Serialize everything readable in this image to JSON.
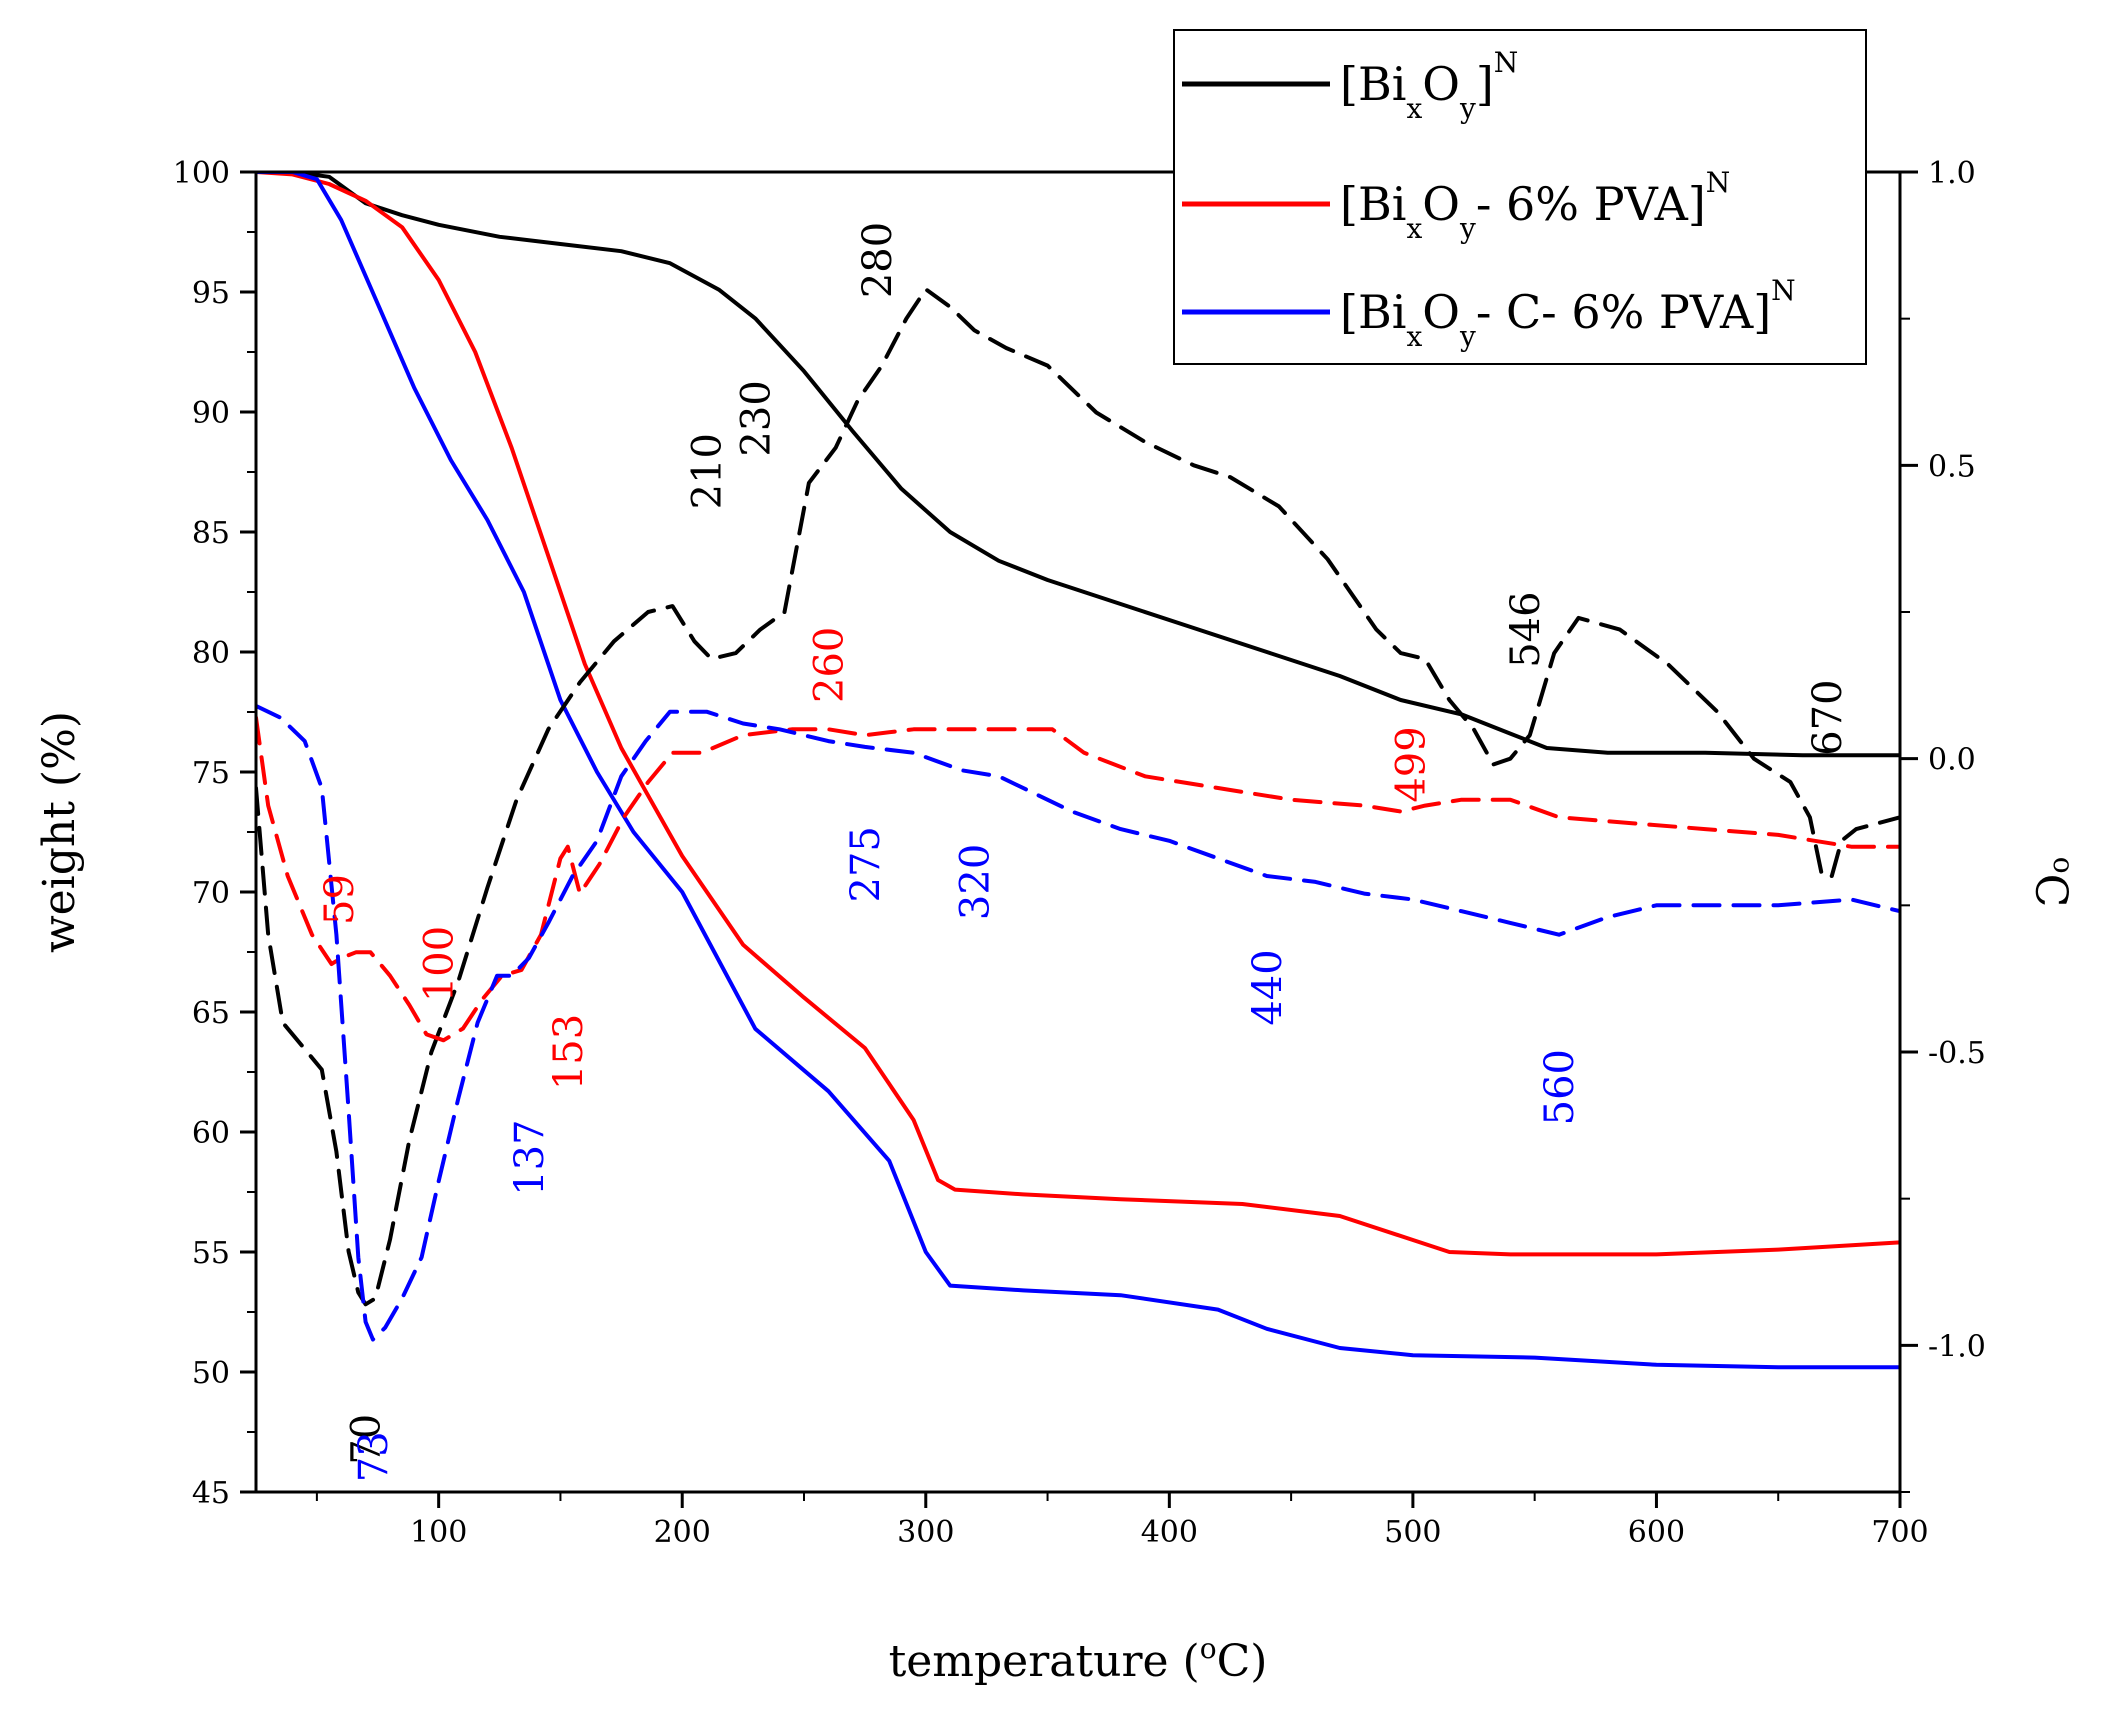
{
  "chart_data": {
    "type": "line",
    "title": "",
    "xlabel": "temperature (°C)",
    "xlabel_parts": {
      "pre": "temperature (",
      "sup": "o",
      "post": "C)"
    },
    "ylabel": "weight (%)",
    "y2label": "°C",
    "y2label_parts": {
      "sup": "o",
      "post": "C"
    },
    "xlim": [
      25,
      700
    ],
    "ylim": [
      45,
      100
    ],
    "y2lim": [
      -1.25,
      1.0
    ],
    "xticks": [
      100,
      200,
      300,
      400,
      500,
      600,
      700
    ],
    "xminor": [
      50,
      150,
      250,
      350,
      450,
      550,
      650
    ],
    "yticks": [
      45,
      50,
      55,
      60,
      65,
      70,
      75,
      80,
      85,
      90,
      95,
      100
    ],
    "yticks_labels": [
      "45",
      "50",
      "55",
      "60",
      "65",
      "70",
      "75",
      "80",
      "85",
      "90",
      "95",
      "100"
    ],
    "y2ticks": [
      -1.0,
      -0.5,
      0.0,
      0.5,
      1.0
    ],
    "y2ticks_labels": [
      "-1.0",
      "-0.5",
      "0.0",
      "0.5",
      "1.0"
    ],
    "y2minor": [
      -1.25,
      -0.75,
      -0.25,
      0.25,
      0.75
    ],
    "legend": {
      "position": "top-right",
      "entries": [
        {
          "series": "s1",
          "parts": [
            [
              "",
              "[Bi"
            ],
            [
              "sub",
              "x"
            ],
            [
              "",
              "O"
            ],
            [
              "sub",
              "y"
            ],
            [
              "",
              "]"
            ],
            [
              "sup",
              "N"
            ]
          ]
        },
        {
          "series": "s2",
          "parts": [
            [
              "",
              "[Bi"
            ],
            [
              "sub",
              "x"
            ],
            [
              "",
              "O"
            ],
            [
              "sub",
              "y"
            ],
            [
              "",
              "- 6% PVA]"
            ],
            [
              "sup",
              "N"
            ]
          ]
        },
        {
          "series": "s3",
          "parts": [
            [
              "",
              "[Bi"
            ],
            [
              "sub",
              "x"
            ],
            [
              "",
              "O"
            ],
            [
              "sub",
              "y"
            ],
            [
              "",
              "- C- 6% PVA]"
            ],
            [
              "sup",
              "N"
            ]
          ]
        }
      ]
    },
    "series": [
      {
        "id": "s1",
        "name": "[BixOy]N",
        "color": "#000000",
        "axis": "weight",
        "style": "solid",
        "x": [
          25,
          40,
          55,
          70,
          85,
          100,
          125,
          150,
          175,
          195,
          215,
          230,
          250,
          270,
          290,
          310,
          330,
          350,
          380,
          410,
          440,
          470,
          495,
          520,
          540,
          555,
          580,
          620,
          660,
          700
        ],
        "y": [
          100,
          100,
          99.8,
          98.7,
          98.2,
          97.8,
          97.3,
          97.0,
          96.7,
          96.2,
          95.1,
          93.9,
          91.7,
          89.2,
          86.8,
          85.0,
          83.8,
          83.0,
          82.0,
          81.0,
          80.0,
          79.0,
          78.0,
          77.4,
          76.6,
          76.0,
          75.8,
          75.8,
          75.7,
          75.7
        ]
      },
      {
        "id": "s2",
        "name": "[BixOy- 6% PVA]N",
        "color": "#ff0000",
        "axis": "weight",
        "style": "solid",
        "x": [
          25,
          40,
          55,
          70,
          85,
          100,
          115,
          130,
          145,
          160,
          175,
          200,
          225,
          250,
          275,
          295,
          305,
          312,
          340,
          380,
          430,
          470,
          500,
          515,
          540,
          600,
          650,
          700
        ],
        "y": [
          100,
          99.9,
          99.5,
          98.8,
          97.7,
          95.5,
          92.5,
          88.5,
          84.0,
          79.5,
          76.0,
          71.5,
          67.8,
          65.6,
          63.5,
          60.5,
          58.0,
          57.6,
          57.4,
          57.2,
          57.0,
          56.5,
          55.5,
          55.0,
          54.9,
          54.9,
          55.1,
          55.4
        ]
      },
      {
        "id": "s3",
        "name": "[BixOy- C- 6% PVA]N",
        "color": "#0000ff",
        "axis": "weight",
        "style": "solid",
        "x": [
          25,
          40,
          50,
          60,
          75,
          90,
          105,
          120,
          135,
          150,
          165,
          180,
          200,
          230,
          260,
          285,
          300,
          310,
          340,
          380,
          420,
          440,
          470,
          500,
          550,
          600,
          650,
          700
        ],
        "y": [
          100,
          100,
          99.7,
          98.0,
          94.5,
          91.0,
          88.0,
          85.5,
          82.5,
          78.0,
          75.0,
          72.5,
          70.0,
          64.3,
          61.7,
          58.8,
          55.0,
          53.6,
          53.4,
          53.2,
          52.6,
          51.8,
          51.0,
          50.7,
          50.6,
          50.3,
          50.2,
          50.2
        ]
      },
      {
        "id": "d1",
        "name": "[BixOy]N derivative",
        "color": "#000000",
        "axis": "secondary",
        "style": "dashed",
        "x": [
          25,
          30,
          36,
          44,
          52,
          58,
          63,
          67,
          70,
          74,
          80,
          88,
          97,
          108,
          120,
          132,
          145,
          158,
          172,
          186,
          196,
          205,
          212,
          222,
          232,
          242,
          252,
          263,
          272,
          282,
          292,
          300,
          310,
          320,
          333,
          350,
          370,
          390,
          410,
          425,
          445,
          465,
          485,
          495,
          505,
          515,
          525,
          533,
          540,
          548,
          558,
          568,
          585,
          605,
          625,
          640,
          655,
          663,
          668,
          672,
          676,
          682,
          700
        ],
        "y": [
          -0.05,
          -0.3,
          -0.45,
          -0.49,
          -0.53,
          -0.67,
          -0.84,
          -0.91,
          -0.93,
          -0.92,
          -0.82,
          -0.65,
          -0.5,
          -0.38,
          -0.22,
          -0.07,
          0.05,
          0.13,
          0.2,
          0.25,
          0.26,
          0.2,
          0.17,
          0.18,
          0.22,
          0.25,
          0.47,
          0.53,
          0.61,
          0.67,
          0.75,
          0.8,
          0.77,
          0.73,
          0.7,
          0.67,
          0.59,
          0.54,
          0.5,
          0.48,
          0.43,
          0.34,
          0.22,
          0.18,
          0.17,
          0.1,
          0.05,
          -0.01,
          0.0,
          0.04,
          0.18,
          0.24,
          0.22,
          0.16,
          0.08,
          0.0,
          -0.04,
          -0.1,
          -0.2,
          -0.2,
          -0.14,
          -0.12,
          -0.1
        ]
      },
      {
        "id": "d2",
        "name": "[BixOy- 6% PVA]N derivative",
        "color": "#ff0000",
        "axis": "secondary",
        "style": "dashed",
        "x": [
          25,
          30,
          38,
          48,
          56,
          60,
          66,
          72,
          80,
          88,
          95,
          102,
          110,
          118,
          126,
          134,
          142,
          150,
          153,
          158,
          166,
          176,
          186,
          196,
          208,
          225,
          245,
          260,
          275,
          295,
          315,
          335,
          352,
          365,
          390,
          420,
          450,
          480,
          495,
          505,
          520,
          540,
          560,
          590,
          620,
          650,
          680,
          700
        ],
        "y": [
          0.07,
          -0.08,
          -0.2,
          -0.3,
          -0.35,
          -0.34,
          -0.33,
          -0.33,
          -0.37,
          -0.42,
          -0.47,
          -0.48,
          -0.46,
          -0.41,
          -0.37,
          -0.36,
          -0.3,
          -0.17,
          -0.15,
          -0.23,
          -0.18,
          -0.1,
          -0.04,
          0.01,
          0.01,
          0.04,
          0.05,
          0.05,
          0.04,
          0.05,
          0.05,
          0.05,
          0.05,
          0.01,
          -0.03,
          -0.05,
          -0.07,
          -0.08,
          -0.09,
          -0.08,
          -0.07,
          -0.07,
          -0.1,
          -0.11,
          -0.12,
          -0.13,
          -0.15,
          -0.15
        ]
      },
      {
        "id": "d3",
        "name": "[BixOy- C- 6% PVA]N derivative",
        "color": "#0000ff",
        "axis": "secondary",
        "style": "dashed",
        "x": [
          25,
          35,
          45,
          52,
          58,
          63,
          67,
          70,
          73,
          78,
          85,
          93,
          100,
          108,
          116,
          124,
          130,
          137,
          145,
          155,
          165,
          175,
          185,
          195,
          210,
          225,
          240,
          260,
          275,
          295,
          315,
          330,
          345,
          360,
          380,
          400,
          420,
          440,
          460,
          480,
          500,
          520,
          540,
          560,
          580,
          600,
          620,
          650,
          680,
          700
        ],
        "y": [
          0.09,
          0.07,
          0.03,
          -0.05,
          -0.3,
          -0.6,
          -0.85,
          -0.96,
          -0.99,
          -0.97,
          -0.92,
          -0.85,
          -0.72,
          -0.58,
          -0.45,
          -0.37,
          -0.37,
          -0.34,
          -0.28,
          -0.2,
          -0.14,
          -0.03,
          0.03,
          0.08,
          0.08,
          0.06,
          0.05,
          0.03,
          0.02,
          0.01,
          -0.02,
          -0.03,
          -0.06,
          -0.09,
          -0.12,
          -0.14,
          -0.17,
          -0.2,
          -0.21,
          -0.23,
          -0.24,
          -0.26,
          -0.28,
          -0.3,
          -0.27,
          -0.25,
          -0.25,
          -0.25,
          -0.24,
          -0.26
        ]
      }
    ],
    "annotations": [
      {
        "text": "70",
        "x": 70,
        "axis": "secondary",
        "y": -1.16,
        "color": "#000000"
      },
      {
        "text": "73",
        "x": 73,
        "axis": "secondary",
        "y": -1.19,
        "color": "#0000ff"
      },
      {
        "text": "59",
        "x": 59,
        "axis": "secondary",
        "y": -0.24,
        "color": "#ff0000"
      },
      {
        "text": "100",
        "x": 100,
        "axis": "secondary",
        "y": -0.35,
        "color": "#ff0000"
      },
      {
        "text": "153",
        "x": 153,
        "axis": "secondary",
        "y": -0.5,
        "color": "#ff0000"
      },
      {
        "text": "137",
        "x": 137,
        "axis": "secondary",
        "y": -0.68,
        "color": "#0000ff"
      },
      {
        "text": "210",
        "x": 210,
        "axis": "secondary",
        "y": 0.49,
        "color": "#000000"
      },
      {
        "text": "230",
        "x": 230,
        "axis": "secondary",
        "y": 0.58,
        "color": "#000000"
      },
      {
        "text": "280",
        "x": 280,
        "axis": "secondary",
        "y": 0.85,
        "color": "#000000"
      },
      {
        "text": "260",
        "x": 260,
        "axis": "secondary",
        "y": 0.16,
        "color": "#ff0000"
      },
      {
        "text": "275",
        "x": 275,
        "axis": "secondary",
        "y": -0.18,
        "color": "#0000ff"
      },
      {
        "text": "320",
        "x": 320,
        "axis": "secondary",
        "y": -0.21,
        "color": "#0000ff"
      },
      {
        "text": "440",
        "x": 440,
        "axis": "secondary",
        "y": -0.39,
        "color": "#0000ff"
      },
      {
        "text": "560",
        "x": 560,
        "axis": "secondary",
        "y": -0.56,
        "color": "#0000ff"
      },
      {
        "text": "499",
        "x": 499,
        "axis": "secondary",
        "y": -0.01,
        "color": "#ff0000"
      },
      {
        "text": "546",
        "x": 546,
        "axis": "secondary",
        "y": 0.22,
        "color": "#000000"
      },
      {
        "text": "670",
        "x": 670,
        "axis": "secondary",
        "y": 0.07,
        "color": "#000000"
      }
    ]
  }
}
